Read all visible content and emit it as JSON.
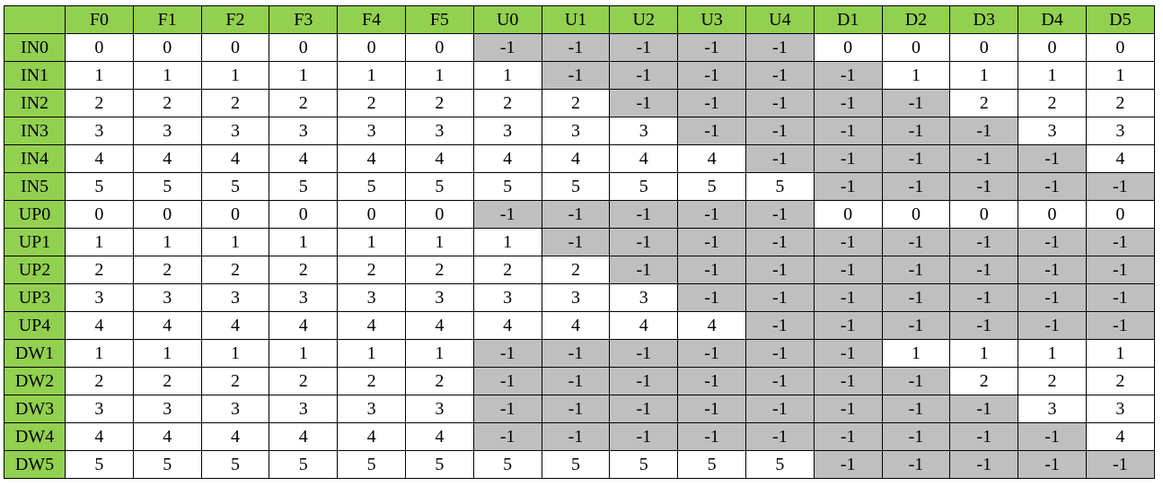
{
  "colors": {
    "header_bg": "#92d050",
    "shaded_cell": "#bfbfbf",
    "plain_cell": "#ffffff",
    "border": "#000000"
  },
  "table": {
    "corner": "",
    "columns": [
      "F0",
      "F1",
      "F2",
      "F3",
      "F4",
      "F5",
      "U0",
      "U1",
      "U2",
      "U3",
      "U4",
      "D1",
      "D2",
      "D3",
      "D4",
      "D5"
    ],
    "rows": [
      {
        "label": "IN0",
        "cells": [
          "0",
          "0",
          "0",
          "0",
          "0",
          "0",
          "-1",
          "-1",
          "-1",
          "-1",
          "-1",
          "0",
          "0",
          "0",
          "0",
          "0"
        ],
        "shaded": [
          0,
          0,
          0,
          0,
          0,
          0,
          1,
          1,
          1,
          1,
          1,
          0,
          0,
          0,
          0,
          0
        ]
      },
      {
        "label": "IN1",
        "cells": [
          "1",
          "1",
          "1",
          "1",
          "1",
          "1",
          "1",
          "-1",
          "-1",
          "-1",
          "-1",
          "-1",
          "1",
          "1",
          "1",
          "1"
        ],
        "shaded": [
          0,
          0,
          0,
          0,
          0,
          0,
          0,
          1,
          1,
          1,
          1,
          1,
          0,
          0,
          0,
          0
        ]
      },
      {
        "label": "IN2",
        "cells": [
          "2",
          "2",
          "2",
          "2",
          "2",
          "2",
          "2",
          "2",
          "-1",
          "-1",
          "-1",
          "-1",
          "-1",
          "2",
          "2",
          "2"
        ],
        "shaded": [
          0,
          0,
          0,
          0,
          0,
          0,
          0,
          0,
          1,
          1,
          1,
          1,
          1,
          0,
          0,
          0
        ]
      },
      {
        "label": "IN3",
        "cells": [
          "3",
          "3",
          "3",
          "3",
          "3",
          "3",
          "3",
          "3",
          "3",
          "-1",
          "-1",
          "-1",
          "-1",
          "-1",
          "3",
          "3"
        ],
        "shaded": [
          0,
          0,
          0,
          0,
          0,
          0,
          0,
          0,
          0,
          1,
          1,
          1,
          1,
          1,
          0,
          0
        ]
      },
      {
        "label": "IN4",
        "cells": [
          "4",
          "4",
          "4",
          "4",
          "4",
          "4",
          "4",
          "4",
          "4",
          "4",
          "-1",
          "-1",
          "-1",
          "-1",
          "-1",
          "4"
        ],
        "shaded": [
          0,
          0,
          0,
          0,
          0,
          0,
          0,
          0,
          0,
          0,
          1,
          1,
          1,
          1,
          1,
          0
        ]
      },
      {
        "label": "IN5",
        "cells": [
          "5",
          "5",
          "5",
          "5",
          "5",
          "5",
          "5",
          "5",
          "5",
          "5",
          "5",
          "-1",
          "-1",
          "-1",
          "-1",
          "-1"
        ],
        "shaded": [
          0,
          0,
          0,
          0,
          0,
          0,
          0,
          0,
          0,
          0,
          0,
          1,
          1,
          1,
          1,
          1
        ]
      },
      {
        "label": "UP0",
        "cells": [
          "0",
          "0",
          "0",
          "0",
          "0",
          "0",
          "-1",
          "-1",
          "-1",
          "-1",
          "-1",
          "0",
          "0",
          "0",
          "0",
          "0"
        ],
        "shaded": [
          0,
          0,
          0,
          0,
          0,
          0,
          1,
          1,
          1,
          1,
          1,
          0,
          0,
          0,
          0,
          0
        ]
      },
      {
        "label": "UP1",
        "cells": [
          "1",
          "1",
          "1",
          "1",
          "1",
          "1",
          "1",
          "-1",
          "-1",
          "-1",
          "-1",
          "-1",
          "-1",
          "-1",
          "-1",
          "-1"
        ],
        "shaded": [
          0,
          0,
          0,
          0,
          0,
          0,
          0,
          1,
          1,
          1,
          1,
          1,
          1,
          1,
          1,
          1
        ]
      },
      {
        "label": "UP2",
        "cells": [
          "2",
          "2",
          "2",
          "2",
          "2",
          "2",
          "2",
          "2",
          "-1",
          "-1",
          "-1",
          "-1",
          "-1",
          "-1",
          "-1",
          "-1"
        ],
        "shaded": [
          0,
          0,
          0,
          0,
          0,
          0,
          0,
          0,
          1,
          1,
          1,
          1,
          1,
          1,
          1,
          1
        ]
      },
      {
        "label": "UP3",
        "cells": [
          "3",
          "3",
          "3",
          "3",
          "3",
          "3",
          "3",
          "3",
          "3",
          "-1",
          "-1",
          "-1",
          "-1",
          "-1",
          "-1",
          "-1"
        ],
        "shaded": [
          0,
          0,
          0,
          0,
          0,
          0,
          0,
          0,
          0,
          1,
          1,
          1,
          1,
          1,
          1,
          1
        ]
      },
      {
        "label": "UP4",
        "cells": [
          "4",
          "4",
          "4",
          "4",
          "4",
          "4",
          "4",
          "4",
          "4",
          "4",
          "-1",
          "-1",
          "-1",
          "-1",
          "-1",
          "-1"
        ],
        "shaded": [
          0,
          0,
          0,
          0,
          0,
          0,
          0,
          0,
          0,
          0,
          1,
          1,
          1,
          1,
          1,
          1
        ]
      },
      {
        "label": "DW1",
        "cells": [
          "1",
          "1",
          "1",
          "1",
          "1",
          "1",
          "-1",
          "-1",
          "-1",
          "-1",
          "-1",
          "-1",
          "1",
          "1",
          "1",
          "1"
        ],
        "shaded": [
          0,
          0,
          0,
          0,
          0,
          0,
          1,
          1,
          1,
          1,
          1,
          1,
          0,
          0,
          0,
          0
        ]
      },
      {
        "label": "DW2",
        "cells": [
          "2",
          "2",
          "2",
          "2",
          "2",
          "2",
          "-1",
          "-1",
          "-1",
          "-1",
          "-1",
          "-1",
          "-1",
          "2",
          "2",
          "2"
        ],
        "shaded": [
          0,
          0,
          0,
          0,
          0,
          0,
          1,
          1,
          1,
          1,
          1,
          1,
          1,
          0,
          0,
          0
        ]
      },
      {
        "label": "DW3",
        "cells": [
          "3",
          "3",
          "3",
          "3",
          "3",
          "3",
          "-1",
          "-1",
          "-1",
          "-1",
          "-1",
          "-1",
          "-1",
          "-1",
          "3",
          "3"
        ],
        "shaded": [
          0,
          0,
          0,
          0,
          0,
          0,
          1,
          1,
          1,
          1,
          1,
          1,
          1,
          1,
          0,
          0
        ]
      },
      {
        "label": "DW4",
        "cells": [
          "4",
          "4",
          "4",
          "4",
          "4",
          "4",
          "-1",
          "-1",
          "-1",
          "-1",
          "-1",
          "-1",
          "-1",
          "-1",
          "-1",
          "4"
        ],
        "shaded": [
          0,
          0,
          0,
          0,
          0,
          0,
          1,
          1,
          1,
          1,
          1,
          1,
          1,
          1,
          1,
          0
        ]
      },
      {
        "label": "DW5",
        "cells": [
          "5",
          "5",
          "5",
          "5",
          "5",
          "5",
          "5",
          "5",
          "5",
          "5",
          "5",
          "-1",
          "-1",
          "-1",
          "-1",
          "-1"
        ],
        "shaded": [
          0,
          0,
          0,
          0,
          0,
          0,
          0,
          0,
          0,
          0,
          0,
          1,
          1,
          1,
          1,
          1
        ]
      }
    ]
  }
}
